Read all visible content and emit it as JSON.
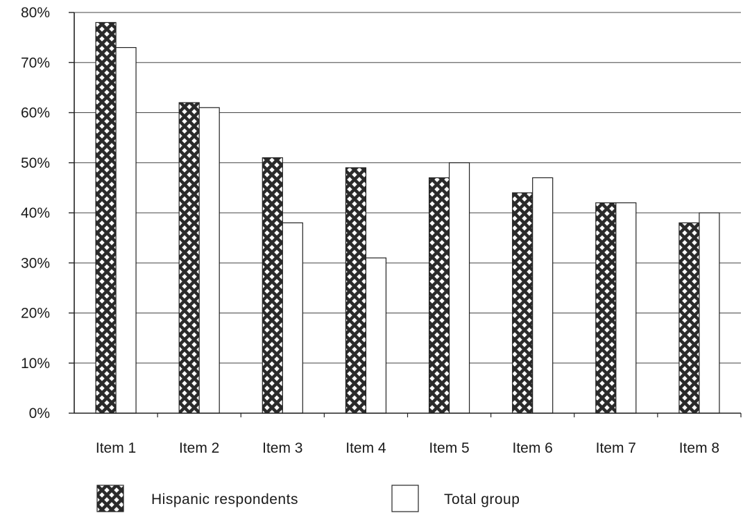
{
  "chart_data": {
    "type": "bar",
    "categories": [
      "Item 1",
      "Item 2",
      "Item 3",
      "Item 4",
      "Item 5",
      "Item 6",
      "Item 7",
      "Item 8"
    ],
    "series": [
      {
        "name": "Hispanic respondents",
        "values": [
          78,
          62,
          51,
          49,
          47,
          44,
          42,
          38
        ],
        "pattern": "crosshatch",
        "color": "#2a2a2a"
      },
      {
        "name": "Total group",
        "values": [
          73,
          61,
          38,
          31,
          50,
          47,
          42,
          40
        ],
        "pattern": "solid",
        "color": "#ffffff"
      }
    ],
    "ylim": [
      0,
      80
    ],
    "yticks": [
      "0%",
      "10%",
      "20%",
      "30%",
      "40%",
      "50%",
      "60%",
      "70%",
      "80%"
    ],
    "title": "",
    "xlabel": "",
    "ylabel": "",
    "grid": "horizontal",
    "legend_position": "bottom"
  }
}
